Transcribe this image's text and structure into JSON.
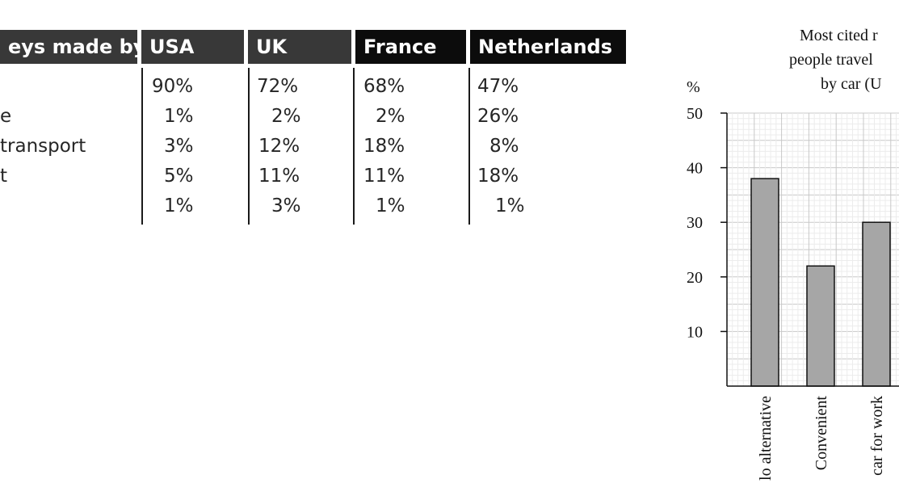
{
  "table": {
    "header_label": "eys made by:",
    "columns": [
      "USA",
      "UK",
      "France",
      "Netherlands"
    ],
    "rows": [
      {
        "label": "",
        "values": [
          "90%",
          "72%",
          "68%",
          "47%"
        ]
      },
      {
        "label": "e",
        "values": [
          "1%",
          "2%",
          "2%",
          "26%"
        ]
      },
      {
        "label": "transport",
        "values": [
          "3%",
          "12%",
          "18%",
          "8%"
        ]
      },
      {
        "label": "t",
        "values": [
          "5%",
          "11%",
          "11%",
          "18%"
        ]
      },
      {
        "label": "",
        "values": [
          "1%",
          "3%",
          "1%",
          "1%"
        ]
      }
    ]
  },
  "chart_data": {
    "type": "bar",
    "title_lines": [
      "Most cited r",
      "people travel",
      "by car (U"
    ],
    "ylabel": "%",
    "yticks": [
      10,
      20,
      30,
      40,
      50
    ],
    "ylim": [
      0,
      50
    ],
    "categories": [
      "No alternative",
      "Convenient",
      "car for work"
    ],
    "category_labels_visible": [
      "lo alternative",
      "Convenient",
      "car for work"
    ],
    "values": [
      38,
      22,
      30
    ],
    "grid": true,
    "colors": {
      "bar": "#a6a6a6",
      "grid": "#d9d9d9"
    }
  }
}
